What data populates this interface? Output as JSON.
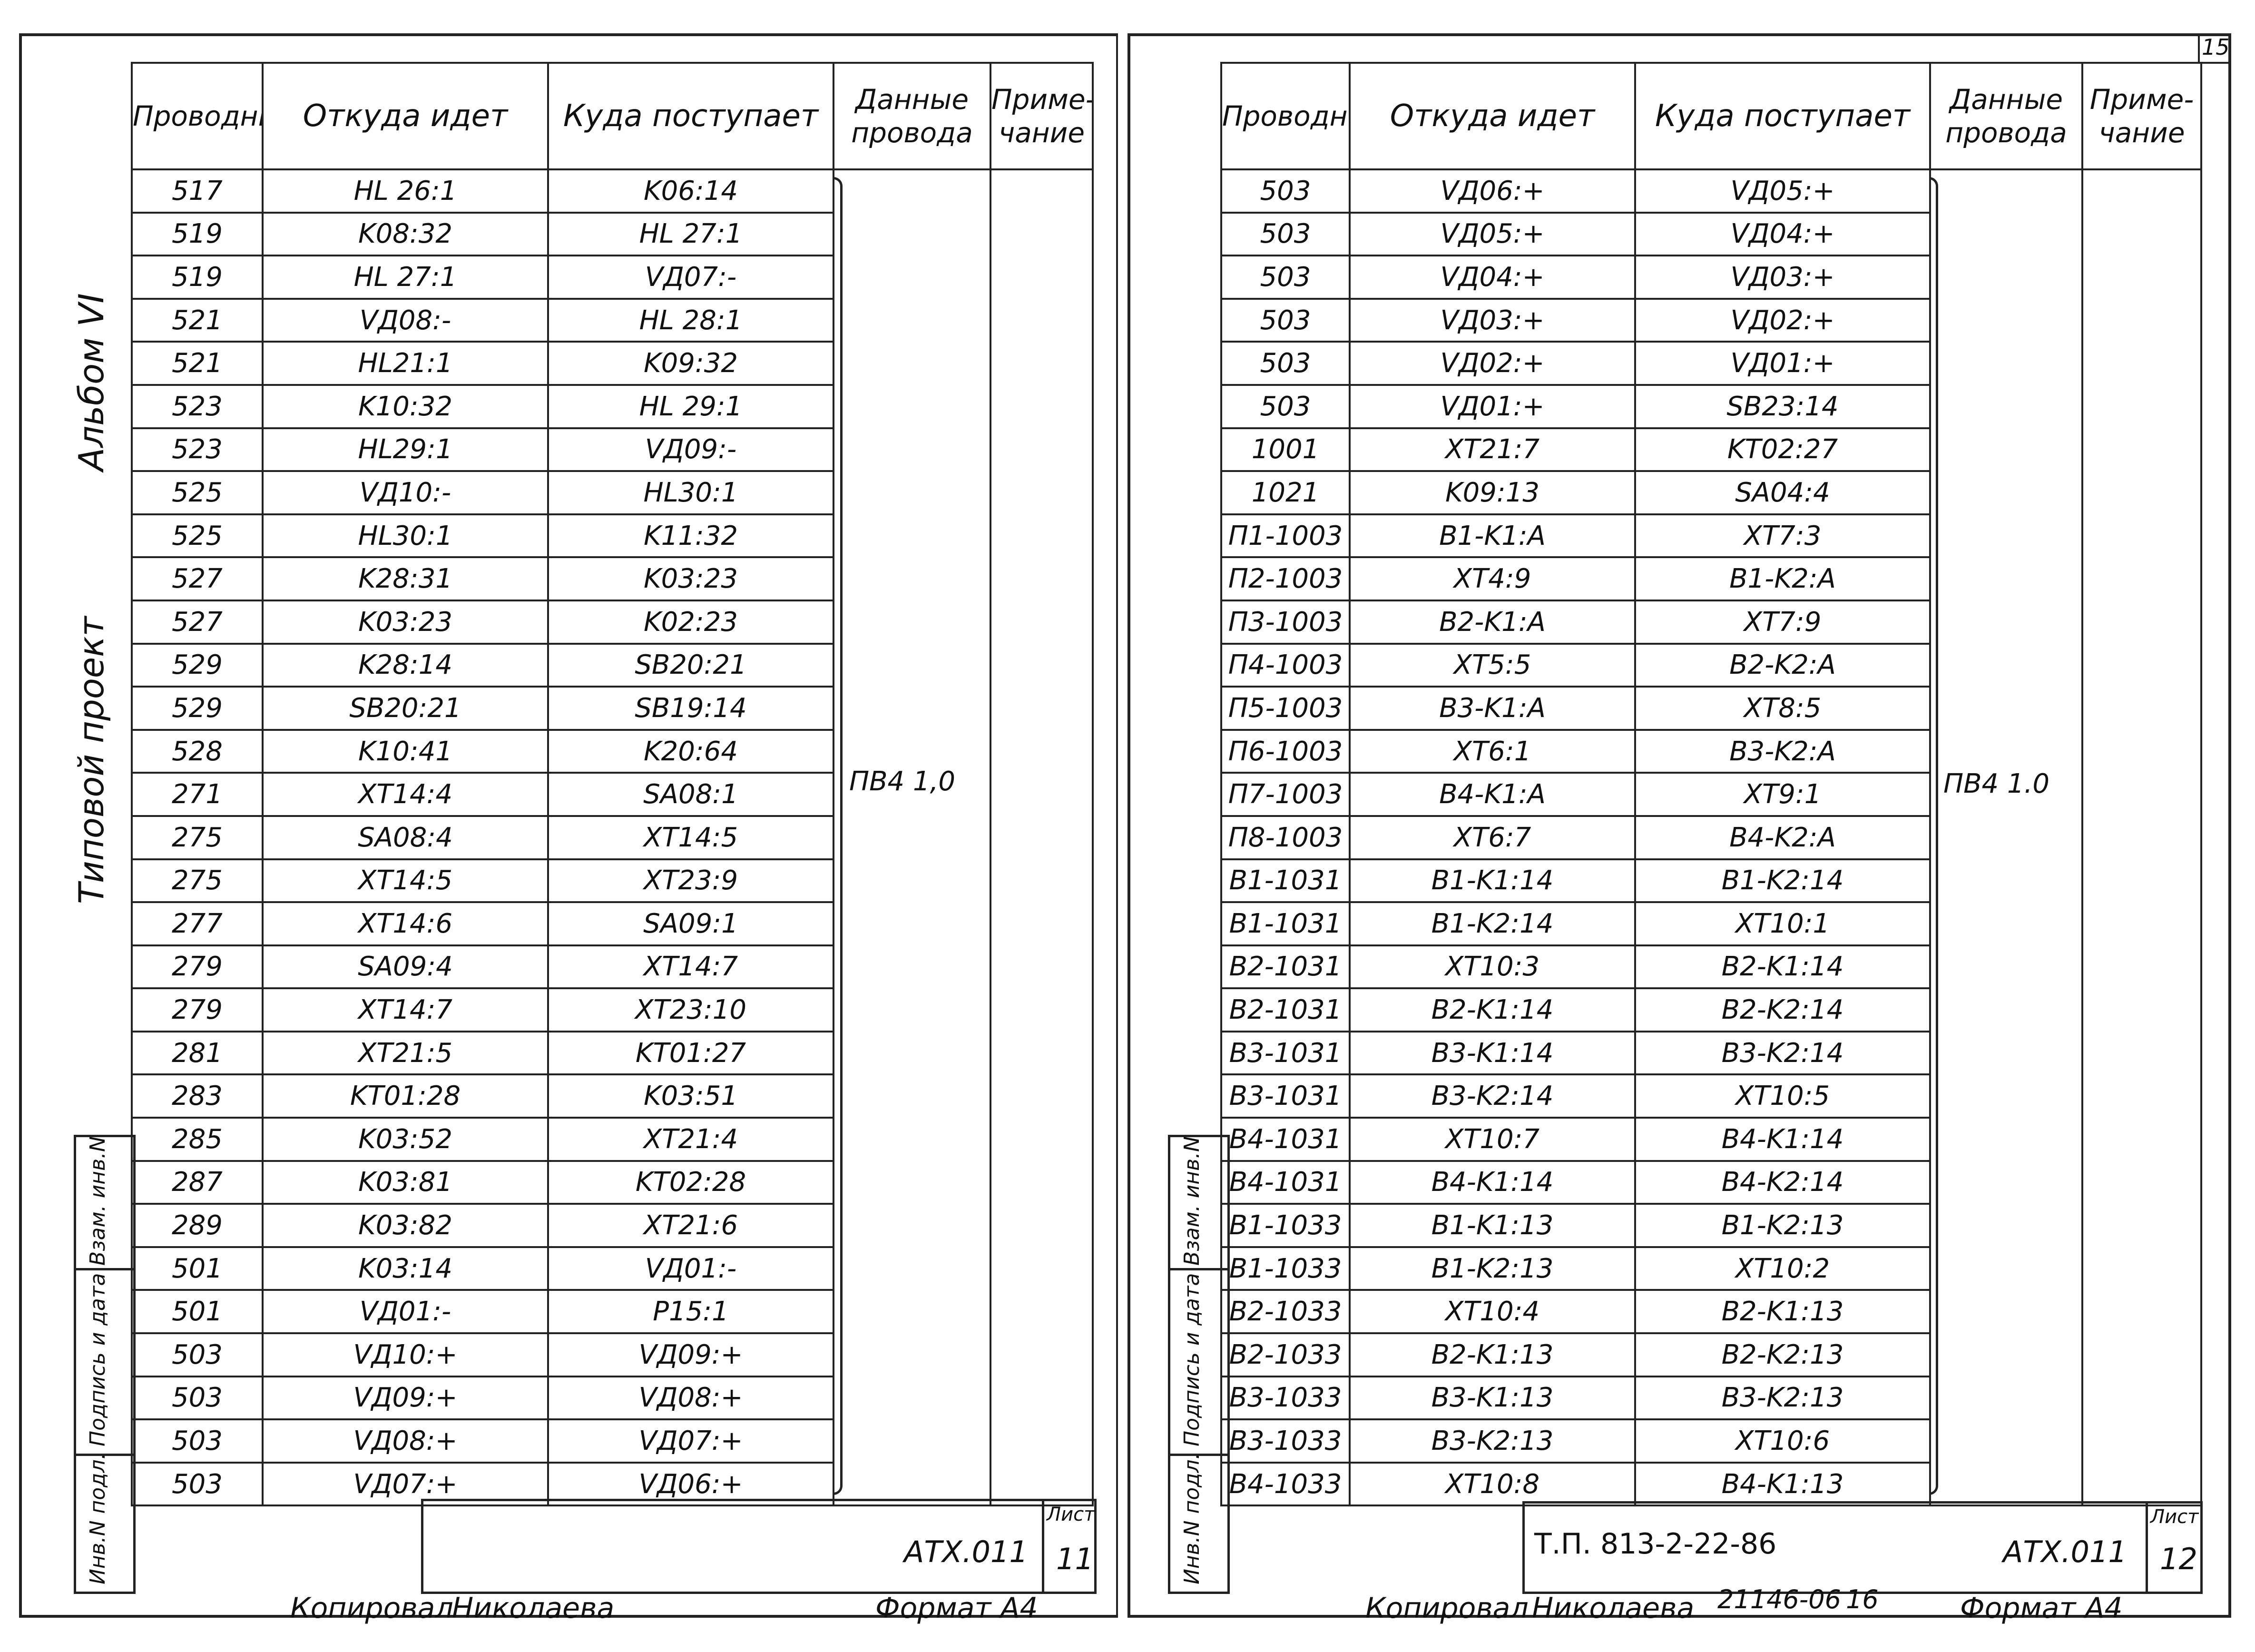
{
  "corner_page_number": "15",
  "left": {
    "headers": {
      "wire": "Проводник",
      "from": "Откуда идет",
      "to": "Куда поступает",
      "wire_data": "Данные провода",
      "note": "Приме-чание"
    },
    "wire_spec": "ПВ4 1,0",
    "vertical_title_1": "Альбом VI",
    "vertical_title_2": "Типовой проект",
    "stamp": [
      "Инв.N подл.",
      "Подпись и дата",
      "Взам. инв.N"
    ],
    "doc_code": "АТХ.011",
    "sheet_label": "Лист",
    "sheet_number": "11",
    "copied_by": "Копировал",
    "copier_name": "Николаева",
    "format_label": "Формат А4",
    "rows": [
      [
        "517",
        "HL 26:1",
        "K06:14"
      ],
      [
        "519",
        "K08:32",
        "HL 27:1"
      ],
      [
        "519",
        "HL 27:1",
        "VД07:-"
      ],
      [
        "521",
        "VД08:-",
        "HL 28:1"
      ],
      [
        "521",
        "HL21:1",
        "K09:32"
      ],
      [
        "523",
        "K10:32",
        "HL 29:1"
      ],
      [
        "523",
        "HL29:1",
        "VД09:-"
      ],
      [
        "525",
        "VД10:-",
        "HL30:1"
      ],
      [
        "525",
        "HL30:1",
        "K11:32"
      ],
      [
        "527",
        "K28:31",
        "K03:23"
      ],
      [
        "527",
        "K03:23",
        "K02:23"
      ],
      [
        "529",
        "K28:14",
        "SB20:21"
      ],
      [
        "529",
        "SB20:21",
        "SB19:14"
      ],
      [
        "528",
        "K10:41",
        "K20:64"
      ],
      [
        "271",
        "XT14:4",
        "SA08:1"
      ],
      [
        "275",
        "SA08:4",
        "XT14:5"
      ],
      [
        "275",
        "XT14:5",
        "XT23:9"
      ],
      [
        "277",
        "XT14:6",
        "SA09:1"
      ],
      [
        "279",
        "SA09:4",
        "XT14:7"
      ],
      [
        "279",
        "XT14:7",
        "XT23:10"
      ],
      [
        "281",
        "XT21:5",
        "KT01:27"
      ],
      [
        "283",
        "KT01:28",
        "K03:51"
      ],
      [
        "285",
        "K03:52",
        "XT21:4"
      ],
      [
        "287",
        "K03:81",
        "KT02:28"
      ],
      [
        "289",
        "K03:82",
        "XT21:6"
      ],
      [
        "501",
        "K03:14",
        "VД01:-"
      ],
      [
        "501",
        "VД01:-",
        "P15:1"
      ],
      [
        "503",
        "VД10:+",
        "VД09:+"
      ],
      [
        "503",
        "VД09:+",
        "VД08:+"
      ],
      [
        "503",
        "VД08:+",
        "VД07:+"
      ],
      [
        "503",
        "VД07:+",
        "VД06:+"
      ]
    ]
  },
  "right": {
    "headers": {
      "wire": "Проводник",
      "from": "Откуда идет",
      "to": "Куда поступает",
      "wire_data": "Данные провода",
      "note": "Приме-чание"
    },
    "wire_spec": "ПВ4 1.0",
    "stamp": [
      "Инв.N подл.",
      "Подпись и дата",
      "Взам. инв.N"
    ],
    "project_code": "Т.П. 813-2-22-86",
    "doc_code": "АТХ.011",
    "sheet_label": "Лист",
    "sheet_number": "12",
    "copied_by": "Копировал",
    "copier_name": "Николаева",
    "order_number": "21146-06",
    "order_sheet": "16",
    "format_label": "Формат А4",
    "rows": [
      [
        "503",
        "VД06:+",
        "VД05:+"
      ],
      [
        "503",
        "VД05:+",
        "VД04:+"
      ],
      [
        "503",
        "VД04:+",
        "VД03:+"
      ],
      [
        "503",
        "VД03:+",
        "VД02:+"
      ],
      [
        "503",
        "VД02:+",
        "VД01:+"
      ],
      [
        "503",
        "VД01:+",
        "SB23:14"
      ],
      [
        "1001",
        "XT21:7",
        "KT02:27"
      ],
      [
        "1021",
        "K09:13",
        "SA04:4"
      ],
      [
        "П1-1003",
        "B1-K1:A",
        "XT7:3"
      ],
      [
        "П2-1003",
        "XT4:9",
        "B1-K2:A"
      ],
      [
        "П3-1003",
        "B2-K1:A",
        "XT7:9"
      ],
      [
        "П4-1003",
        "XT5:5",
        "B2-K2:A"
      ],
      [
        "П5-1003",
        "B3-K1:A",
        "XT8:5"
      ],
      [
        "П6-1003",
        "XT6:1",
        "B3-K2:A"
      ],
      [
        "П7-1003",
        "B4-K1:A",
        "XT9:1"
      ],
      [
        "П8-1003",
        "XT6:7",
        "B4-K2:A"
      ],
      [
        "B1-1031",
        "B1-K1:14",
        "B1-K2:14"
      ],
      [
        "B1-1031",
        "B1-K2:14",
        "XT10:1"
      ],
      [
        "B2-1031",
        "XT10:3",
        "B2-K1:14"
      ],
      [
        "B2-1031",
        "B2-K1:14",
        "B2-K2:14"
      ],
      [
        "B3-1031",
        "B3-K1:14",
        "B3-K2:14"
      ],
      [
        "B3-1031",
        "B3-K2:14",
        "XT10:5"
      ],
      [
        "B4-1031",
        "XT10:7",
        "B4-K1:14"
      ],
      [
        "B4-1031",
        "B4-K1:14",
        "B4-K2:14"
      ],
      [
        "B1-1033",
        "B1-K1:13",
        "B1-K2:13"
      ],
      [
        "B1-1033",
        "B1-K2:13",
        "XT10:2"
      ],
      [
        "B2-1033",
        "XT10:4",
        "B2-K1:13"
      ],
      [
        "B2-1033",
        "B2-K1:13",
        "B2-K2:13"
      ],
      [
        "B3-1033",
        "B3-K1:13",
        "B3-K2:13"
      ],
      [
        "B3-1033",
        "B3-K2:13",
        "XT10:6"
      ],
      [
        "B4-1033",
        "XT10:8",
        "B4-K1:13"
      ]
    ]
  }
}
